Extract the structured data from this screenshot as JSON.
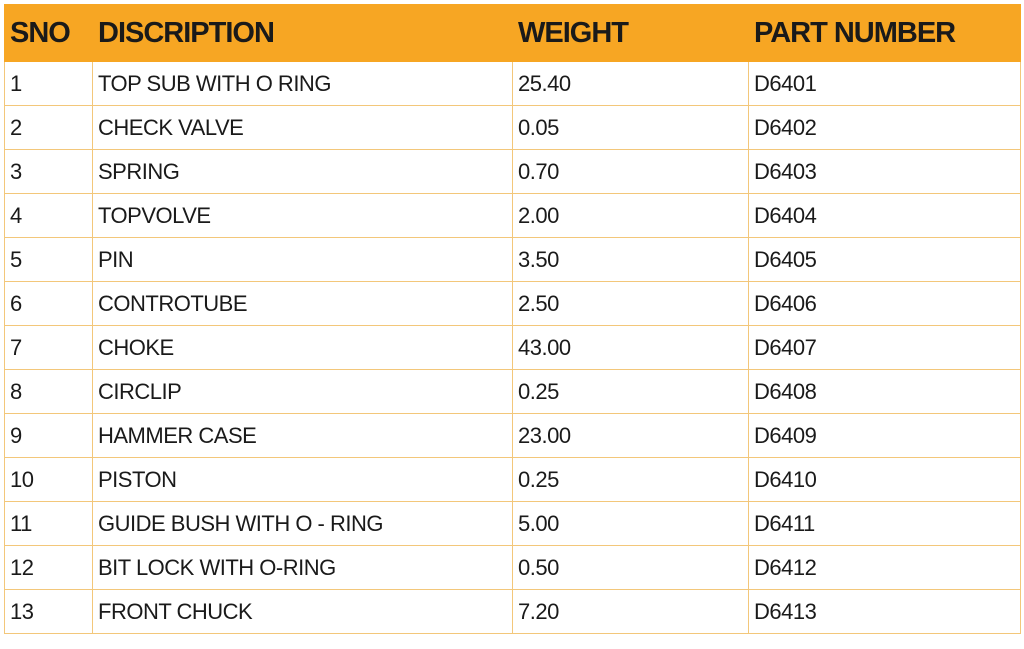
{
  "table": {
    "headers": [
      "SNO",
      "DISCRIPTION",
      "WEIGHT",
      "PART NUMBER"
    ],
    "rows": [
      [
        "1",
        "TOP SUB WITH O RING",
        "25.40",
        "D6401"
      ],
      [
        "2",
        "CHECK VALVE",
        "0.05",
        "D6402"
      ],
      [
        "3",
        "SPRING",
        "0.70",
        "D6403"
      ],
      [
        "4",
        "TOPVOLVE",
        "2.00",
        "D6404"
      ],
      [
        "5",
        "PIN",
        "3.50",
        "D6405"
      ],
      [
        "6",
        "CONTROTUBE",
        "2.50",
        "D6406"
      ],
      [
        "7",
        "CHOKE",
        "43.00",
        "D6407"
      ],
      [
        "8",
        "CIRCLIP",
        "0.25",
        "D6408"
      ],
      [
        "9",
        "HAMMER CASE",
        "23.00",
        "D6409"
      ],
      [
        "10",
        "PISTON",
        "0.25",
        "D6410"
      ],
      [
        "11",
        "GUIDE BUSH WITH O - RING",
        "5.00",
        "D6411"
      ],
      [
        "12",
        "BIT LOCK WITH O-RING",
        "0.50",
        "D6412"
      ],
      [
        "13",
        "FRONT CHUCK",
        "7.20",
        "D6413"
      ]
    ]
  },
  "colors": {
    "header_bg": "#f7a623",
    "border": "#f3c77a",
    "text": "#1a1a1a"
  }
}
